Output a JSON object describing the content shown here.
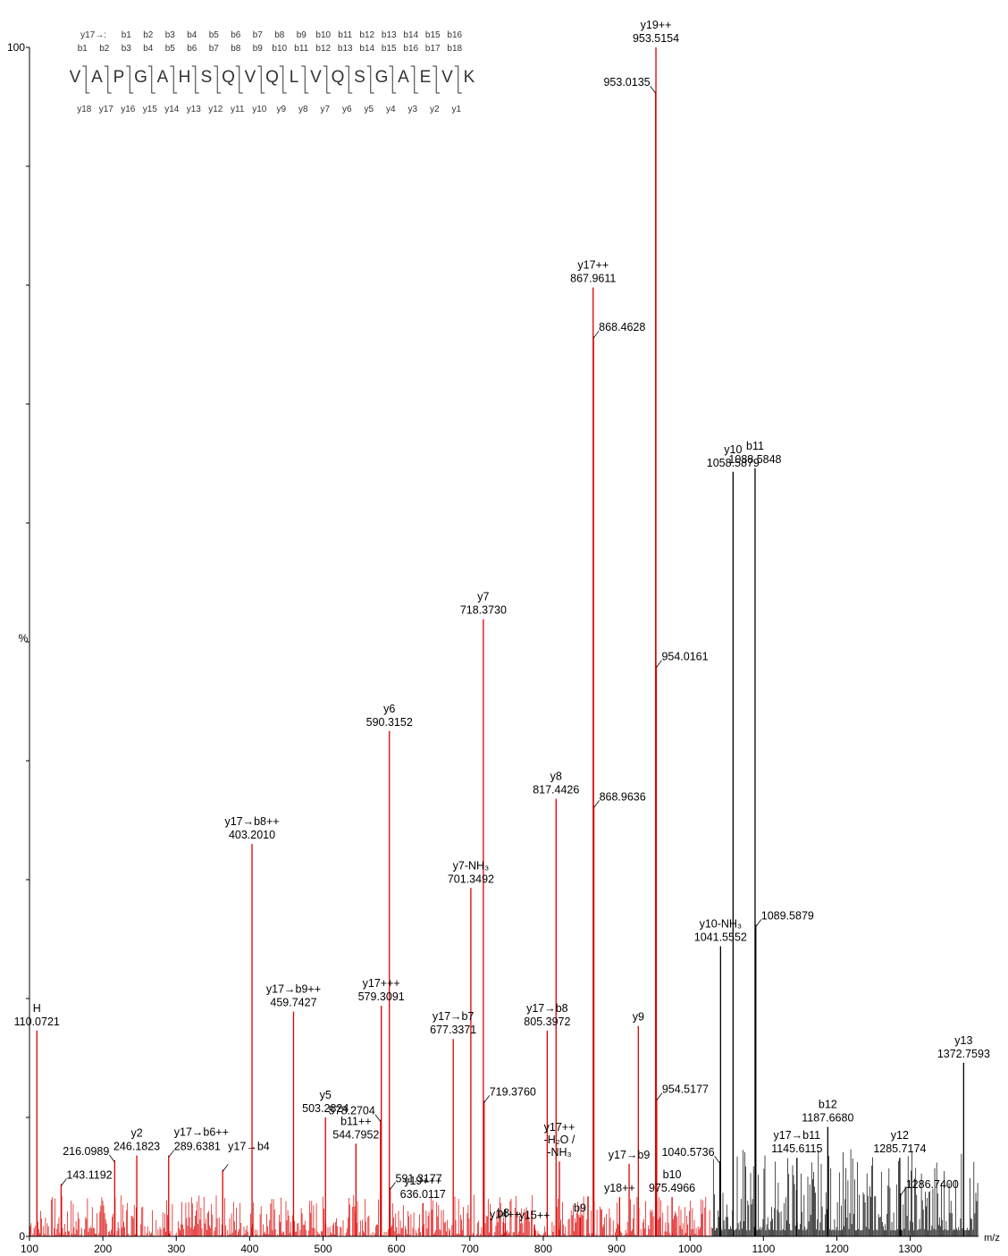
{
  "chart_data": {
    "type": "mass-spectrum",
    "xlabel": "m/z",
    "ylabel": "%",
    "xlim": [
      100,
      1393
    ],
    "ylim": [
      0,
      100
    ],
    "xticks": [
      100,
      200,
      300,
      400,
      500,
      600,
      700,
      800,
      900,
      1000,
      1100,
      1200,
      1300
    ],
    "yticks": [
      0,
      100
    ],
    "colors": {
      "annotated": "#dd0000",
      "unannotated": "#000000",
      "text": "#000000"
    },
    "sequence": {
      "residues": [
        "V",
        "A",
        "P",
        "G",
        "A",
        "H",
        "S",
        "Q",
        "V",
        "Q",
        "L",
        "V",
        "Q",
        "S",
        "G",
        "A",
        "E",
        "V",
        "K"
      ],
      "top_row1_prefix": "y17→:",
      "top_row1": [
        "b1",
        "b2",
        "b3",
        "b4",
        "b5",
        "b6",
        "b7",
        "b8",
        "b9",
        "b10",
        "b11",
        "b12",
        "b13",
        "b14",
        "b15",
        "b16"
      ],
      "top_row2": [
        "b1",
        "b2",
        "b3",
        "b4",
        "b5",
        "b6",
        "b7",
        "b8",
        "b9",
        "b10",
        "b11",
        "b12",
        "b13",
        "b14",
        "b15",
        "b16",
        "b17",
        "b18"
      ],
      "bottom_row": [
        "y18",
        "y17",
        "y16",
        "y15",
        "y14",
        "y13",
        "y12",
        "y11",
        "y10",
        "y9",
        "y8",
        "y7",
        "y6",
        "y5",
        "y4",
        "y3",
        "y2",
        "y1"
      ]
    },
    "peaks": [
      {
        "mz": 110.0721,
        "i": 17.3,
        "color": "red",
        "name": "H",
        "mzlabel": "110.0721"
      },
      {
        "mz": 143.1192,
        "i": 4.4,
        "color": "red",
        "name": "",
        "mzlabel": "143.1192",
        "lx": 70
      },
      {
        "mz": 216.0989,
        "i": 6.4,
        "color": "red",
        "name": "",
        "mzlabel": "216.0989",
        "lx": 96
      },
      {
        "mz": 246.1823,
        "i": 6.8,
        "color": "red",
        "name": "y2",
        "mzlabel": "246.1823"
      },
      {
        "mz": 289.6381,
        "i": 6.8,
        "color": "red",
        "name": "y17→b6++",
        "mzlabel": "289.6381",
        "lx": 215
      },
      {
        "mz": 363.2,
        "i": 5.6,
        "color": "red",
        "name": "y17→b4",
        "mzlabel": "",
        "lx": 251
      },
      {
        "mz": 403.201,
        "i": 33.0,
        "color": "red",
        "name": "y17→b8++",
        "mzlabel": "403.2010"
      },
      {
        "mz": 459.7427,
        "i": 18.9,
        "color": "red",
        "name": "y17→b9++",
        "mzlabel": "459.7427"
      },
      {
        "mz": 503.2824,
        "i": 10.0,
        "color": "red",
        "name": "y5",
        "mzlabel": "503.2824"
      },
      {
        "mz": 544.7952,
        "i": 7.8,
        "color": "red",
        "name": "b11++",
        "mzlabel": "544.7952"
      },
      {
        "mz": 578.2704,
        "i": 9.8,
        "color": "red",
        "name": "",
        "mzlabel": "578.2704",
        "lx": 393
      },
      {
        "mz": 579.3091,
        "i": 19.4,
        "color": "red",
        "name": "y17+++",
        "mzlabel": "579.3091"
      },
      {
        "mz": 590.3152,
        "i": 42.5,
        "color": "red",
        "name": "y6",
        "mzlabel": "590.3152"
      },
      {
        "mz": 591.3177,
        "i": 4.1,
        "color": "red",
        "name": "",
        "mzlabel": "591.3177",
        "lx": 465
      },
      {
        "mz": 636.0117,
        "i": 2.8,
        "color": "red",
        "name": "y19+++",
        "mzlabel": "636.0117"
      },
      {
        "mz": 677.3371,
        "i": 16.6,
        "color": "red",
        "name": "y17→b7",
        "mzlabel": "677.3371"
      },
      {
        "mz": 701.3492,
        "i": 29.3,
        "color": "red",
        "name": "y7-NH₃",
        "mzlabel": "701.3492"
      },
      {
        "mz": 718.373,
        "i": 51.9,
        "color": "red",
        "name": "y7",
        "mzlabel": "718.3730"
      },
      {
        "mz": 719.376,
        "i": 11.4,
        "color": "red",
        "name": "",
        "mzlabel": "719.3760",
        "lx": 570
      },
      {
        "mz": 745.5,
        "i": 1.2,
        "color": "red",
        "name": "b8",
        "mzlabel": ""
      },
      {
        "mz": 748.0,
        "i": 1.1,
        "color": "red",
        "name": "y14++",
        "mzlabel": ""
      },
      {
        "mz": 788.0,
        "i": 1.0,
        "color": "red",
        "name": "y15++",
        "mzlabel": ""
      },
      {
        "mz": 805.3972,
        "i": 17.3,
        "color": "red",
        "name": "y17→b8",
        "mzlabel": "805.3972"
      },
      {
        "mz": 817.4426,
        "i": 36.8,
        "color": "red",
        "name": "y8",
        "mzlabel": "817.4426"
      },
      {
        "mz": 822.0,
        "i": 6.3,
        "color": "red",
        "name": "y17++\n-H₂O /\n-NH₃",
        "mzlabel": ""
      },
      {
        "mz": 850.0,
        "i": 1.6,
        "color": "red",
        "name": "b9",
        "mzlabel": ""
      },
      {
        "mz": 867.9611,
        "i": 79.8,
        "color": "red",
        "name": "y17++",
        "mzlabel": "867.9611"
      },
      {
        "mz": 868.4628,
        "i": 75.7,
        "color": "red",
        "name": "",
        "mzlabel": "868.4628",
        "lx": 692
      },
      {
        "mz": 868.9636,
        "i": 36.2,
        "color": "red",
        "name": "",
        "mzlabel": "868.9636",
        "lx": 701
      },
      {
        "mz": 904.0,
        "i": 3.3,
        "color": "red",
        "name": "y18++",
        "mzlabel": ""
      },
      {
        "mz": 917.0,
        "i": 6.1,
        "color": "red",
        "name": "y17→b9",
        "mzlabel": ""
      },
      {
        "mz": 929.5,
        "i": 17.7,
        "color": "red",
        "name": "y9",
        "mzlabel": ""
      },
      {
        "mz": 953.0135,
        "i": 96.3,
        "color": "red",
        "name": "",
        "mzlabel": "953.0135",
        "lx": 702
      },
      {
        "mz": 953.5154,
        "i": 100.0,
        "color": "red",
        "name": "y19++",
        "mzlabel": "953.5154"
      },
      {
        "mz": 954.0161,
        "i": 48.0,
        "color": "red",
        "name": "",
        "mzlabel": "954.0161",
        "lx": 771
      },
      {
        "mz": 954.5177,
        "i": 11.6,
        "color": "red",
        "name": "",
        "mzlabel": "954.5177",
        "lx": 764
      },
      {
        "mz": 975.4966,
        "i": 3.3,
        "color": "red",
        "name": "b10",
        "mzlabel": "975.4966"
      },
      {
        "mz": 1040.5736,
        "i": 6.3,
        "color": "black",
        "name": "",
        "mzlabel": "1040.5736",
        "lx": 770
      },
      {
        "mz": 1041.5552,
        "i": 24.4,
        "color": "black",
        "name": "y10-NH₃",
        "mzlabel": "1041.5552"
      },
      {
        "mz": 1058.5879,
        "i": 64.3,
        "color": "black",
        "name": "y10",
        "mzlabel": "1058.5879"
      },
      {
        "mz": 1088.5848,
        "i": 64.6,
        "color": "black",
        "name": "b11",
        "mzlabel": "1088.5848"
      },
      {
        "mz": 1089.5879,
        "i": 26.2,
        "color": "black",
        "name": "",
        "mzlabel": "1089.5879",
        "lx": 878
      },
      {
        "mz": 1145.6115,
        "i": 6.6,
        "color": "black",
        "name": "y17→b11",
        "mzlabel": "1145.6115"
      },
      {
        "mz": 1187.668,
        "i": 9.2,
        "color": "black",
        "name": "b12",
        "mzlabel": "1187.6680"
      },
      {
        "mz": 1285.7174,
        "i": 6.6,
        "color": "black",
        "name": "y12",
        "mzlabel": "1285.7174"
      },
      {
        "mz": 1286.74,
        "i": 3.6,
        "color": "black",
        "name": "",
        "mzlabel": "1286.7400",
        "lx": 1040
      },
      {
        "mz": 1372.7593,
        "i": 14.6,
        "color": "black",
        "name": "y13",
        "mzlabel": "1372.7593"
      }
    ]
  }
}
